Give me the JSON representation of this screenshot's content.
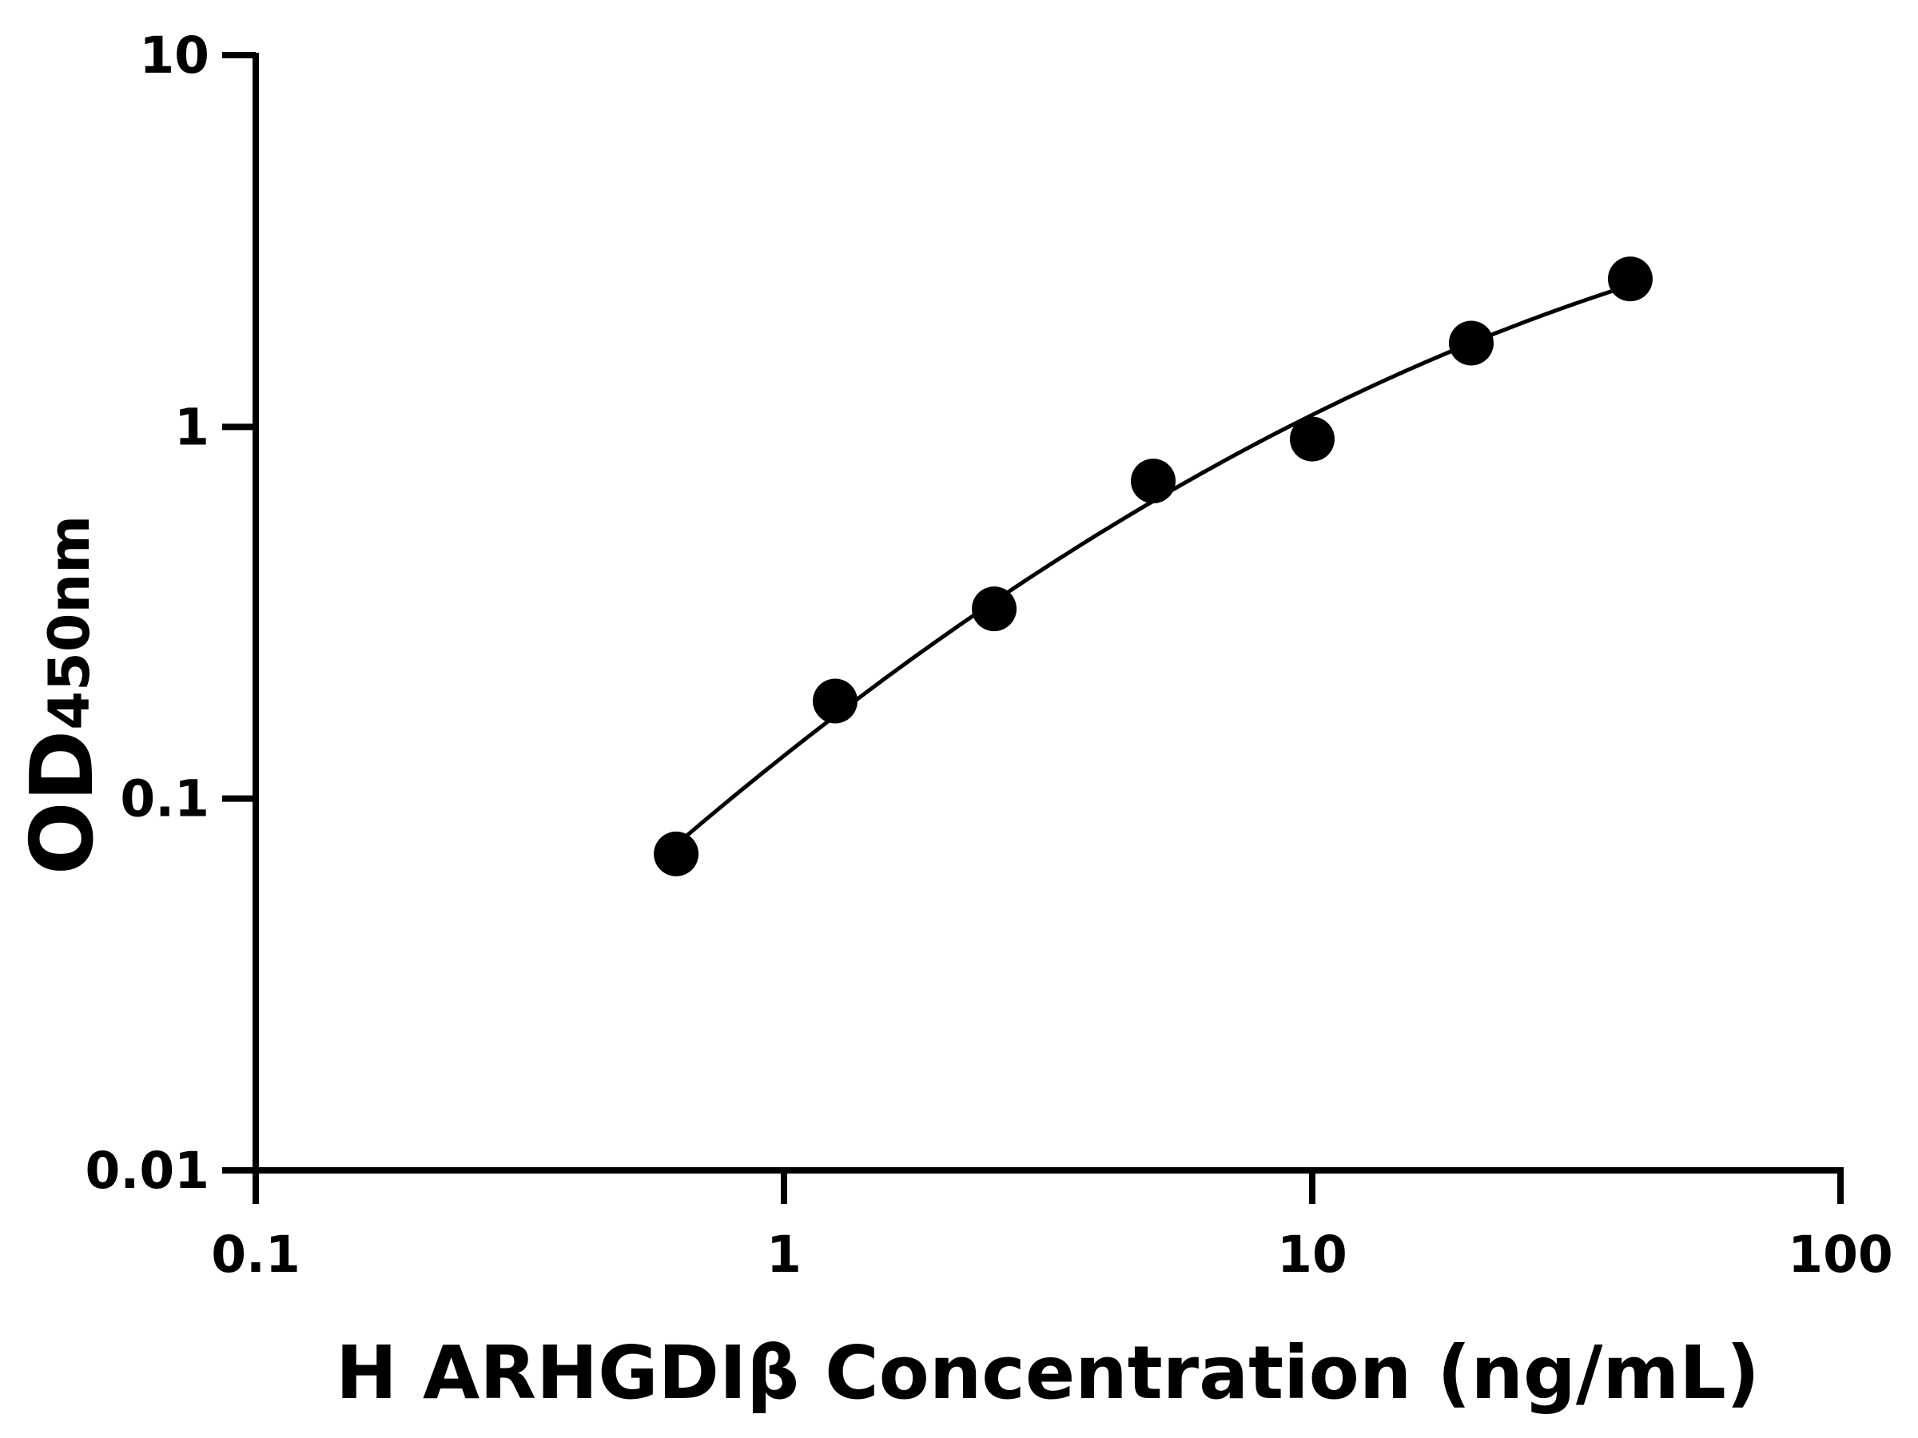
{
  "chart_data": {
    "type": "scatter",
    "title": "",
    "xlabel": "H ARHGDIβ Concentration (ng/mL)",
    "ylabel": "OD",
    "ylabel_subscript": "450nm",
    "xscale": "log",
    "yscale": "log",
    "xlim": [
      0.1,
      100
    ],
    "ylim": [
      0.01,
      10
    ],
    "xticks": [
      "0.1",
      "1",
      "10",
      "100"
    ],
    "yticks": [
      "0.01",
      "0.1",
      "1",
      "10"
    ],
    "grid": false,
    "fit_curve": true,
    "marker_color": "#000000",
    "points": [
      {
        "x": 0.625,
        "y": 0.071
      },
      {
        "x": 1.25,
        "y": 0.183
      },
      {
        "x": 2.5,
        "y": 0.324
      },
      {
        "x": 5,
        "y": 0.715
      },
      {
        "x": 10,
        "y": 0.927
      },
      {
        "x": 20,
        "y": 1.68
      },
      {
        "x": 40,
        "y": 2.5
      }
    ]
  }
}
